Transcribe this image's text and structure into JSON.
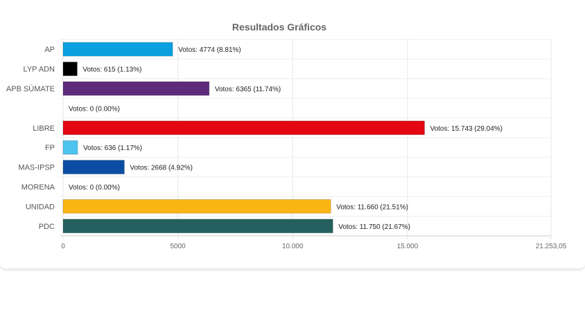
{
  "chart_data": {
    "type": "bar",
    "orientation": "horizontal",
    "title": "Resultados Gráficos",
    "xlim": [
      0,
      21253.05
    ],
    "grid": true,
    "categories": [
      "AP",
      "LYP ADN",
      "APB SÚMATE",
      "",
      "LIBRE",
      "FP",
      "MAS-IPSP",
      "MORENA",
      "UNIDAD",
      "PDC"
    ],
    "values": [
      4774,
      615,
      6365,
      0,
      15743,
      636,
      2668,
      0,
      11660,
      11750
    ],
    "data_labels": [
      "Votos: 4774 (8.81%)",
      "Votos: 615 (1.13%)",
      "Votos: 6365 (11.74%)",
      "Votos: 0 (0.00%)",
      "Votos: 15.743 (29.04%)",
      "Votos: 636 (1.17%)",
      "Votos: 2668 (4.92%)",
      "Votos: 0 (0.00%)",
      "Votos: 11.660 (21.51%)",
      "Votos: 11.750 (21.67%)"
    ],
    "colors": [
      "#0aa0e0",
      "#000000",
      "#5e2a7b",
      "#ffffff",
      "#e30613",
      "#4fc3f0",
      "#0b4da2",
      "#ffffff",
      "#fbb615",
      "#24605f"
    ],
    "x_ticks": [
      {
        "value": 0,
        "label": "0"
      },
      {
        "value": 5000,
        "label": "5000"
      },
      {
        "value": 10000,
        "label": "10.000"
      },
      {
        "value": 15000,
        "label": "15.000"
      },
      {
        "value": 21253.05,
        "label": "21.253,05"
      }
    ]
  }
}
